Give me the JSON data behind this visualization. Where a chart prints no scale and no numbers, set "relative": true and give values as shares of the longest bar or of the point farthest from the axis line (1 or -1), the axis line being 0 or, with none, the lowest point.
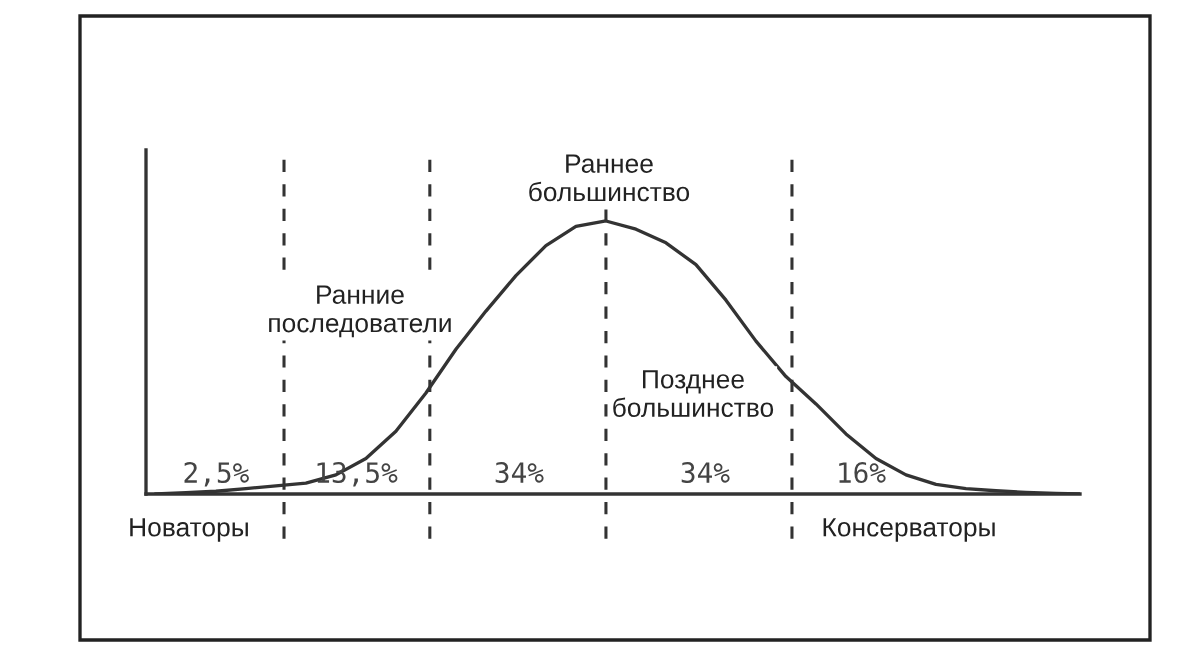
{
  "chart_data": {
    "type": "line",
    "relative": true,
    "categories": [
      null,
      null,
      null,
      null,
      null,
      null,
      null,
      null,
      null,
      null,
      null,
      null,
      null,
      null,
      null,
      null,
      null,
      null,
      null,
      null,
      null,
      null,
      null,
      null,
      null,
      null,
      null,
      null,
      null,
      null,
      null,
      null
    ],
    "series": [
      {
        "color": "#333333",
        "values": [
          0,
          0.005,
          0.01,
          0.02,
          0.03,
          0.04,
          0.07,
          0.13,
          0.23,
          0.37,
          0.53,
          0.67,
          0.8,
          0.91,
          0.98,
          1.0,
          0.97,
          0.92,
          0.84,
          0.71,
          0.56,
          0.43,
          0.33,
          0.22,
          0.13,
          0.07,
          0.035,
          0.02,
          0.012,
          0.006,
          0.002,
          0
        ]
      }
    ],
    "annotations": [
      "Раннее\nбольшинство",
      "Ранние\nпоследователи",
      "Позднее\nбольшинство",
      "2,5%",
      "13,5%",
      "34%",
      "34%",
      "16%",
      "Новаторы",
      "Консерваторы"
    ],
    "marker": "none",
    "line_style": "solid"
  }
}
